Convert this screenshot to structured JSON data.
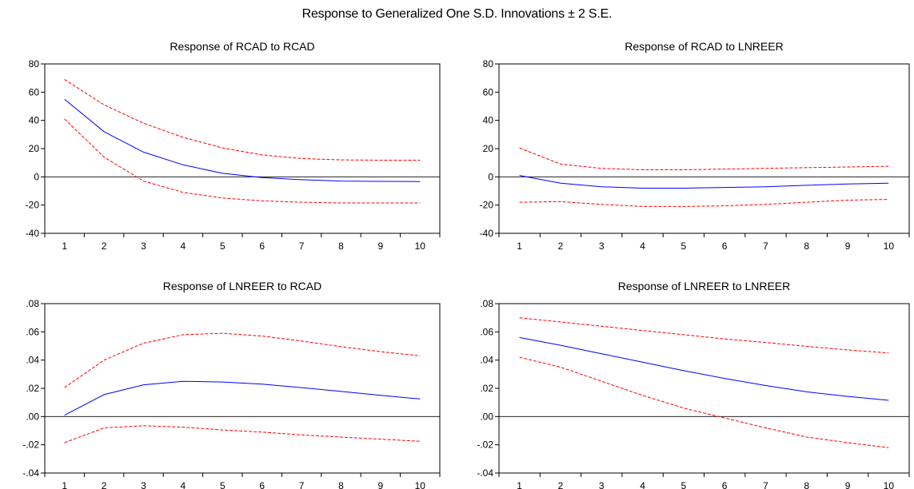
{
  "title": "Response to Generalized One S.D. Innovations ± 2 S.E.",
  "colors": {
    "response": "#0000ff",
    "band": "#ff0000",
    "zero_line": "#000000",
    "frame": "#000000"
  },
  "chart_data": [
    {
      "type": "line",
      "title": "Response of RCAD to RCAD",
      "x": [
        1,
        2,
        3,
        4,
        5,
        6,
        7,
        8,
        9,
        10
      ],
      "ylim": [
        -40,
        80
      ],
      "yticks": [
        -40,
        -20,
        0,
        20,
        40,
        60,
        80
      ],
      "ytick_labels": [
        "-40",
        "-20",
        "0",
        "20",
        "40",
        "60",
        "80"
      ],
      "series": [
        {
          "role": "response",
          "values": [
            55,
            32,
            17.5,
            8.5,
            2.5,
            -0.5,
            -2,
            -3,
            -3.2,
            -3.3
          ]
        },
        {
          "role": "upper",
          "values": [
            69,
            51,
            38,
            28,
            20.5,
            15.5,
            13,
            12,
            11.8,
            11.8
          ]
        },
        {
          "role": "lower",
          "values": [
            41,
            14,
            -3,
            -11,
            -15,
            -17,
            -18,
            -18.5,
            -18.5,
            -18.5
          ]
        }
      ]
    },
    {
      "type": "line",
      "title": "Response of RCAD to LNREER",
      "x": [
        1,
        2,
        3,
        4,
        5,
        6,
        7,
        8,
        9,
        10
      ],
      "ylim": [
        -40,
        80
      ],
      "yticks": [
        -40,
        -20,
        0,
        20,
        40,
        60,
        80
      ],
      "ytick_labels": [
        "-40",
        "-20",
        "0",
        "20",
        "40",
        "60",
        "80"
      ],
      "series": [
        {
          "role": "response",
          "values": [
            1,
            -4.5,
            -7,
            -8,
            -8,
            -7.5,
            -7,
            -6,
            -5,
            -4.5
          ]
        },
        {
          "role": "upper",
          "values": [
            20.5,
            9,
            6,
            5,
            5,
            5.5,
            6,
            6.5,
            7,
            7.5
          ]
        },
        {
          "role": "lower",
          "values": [
            -18,
            -17.5,
            -19.5,
            -21,
            -21,
            -20.5,
            -19.5,
            -18,
            -16.5,
            -16
          ]
        }
      ]
    },
    {
      "type": "line",
      "title": "Response of LNREER to RCAD",
      "x": [
        1,
        2,
        3,
        4,
        5,
        6,
        7,
        8,
        9,
        10
      ],
      "ylim": [
        -0.04,
        0.08
      ],
      "yticks": [
        -0.04,
        -0.02,
        0,
        0.02,
        0.04,
        0.06,
        0.08
      ],
      "ytick_labels": [
        "-.04",
        "-.02",
        ".00",
        ".02",
        ".04",
        ".06",
        ".08"
      ],
      "series": [
        {
          "role": "response",
          "values": [
            0.001,
            0.0155,
            0.0225,
            0.025,
            0.0245,
            0.023,
            0.0205,
            0.0178,
            0.015,
            0.0125
          ]
        },
        {
          "role": "upper",
          "values": [
            0.0205,
            0.04,
            0.052,
            0.058,
            0.059,
            0.057,
            0.0535,
            0.0495,
            0.046,
            0.043
          ]
        },
        {
          "role": "lower",
          "values": [
            -0.0185,
            -0.008,
            -0.0065,
            -0.0075,
            -0.0095,
            -0.011,
            -0.013,
            -0.0145,
            -0.016,
            -0.0175
          ]
        }
      ]
    },
    {
      "type": "line",
      "title": "Response of LNREER to LNREER",
      "x": [
        1,
        2,
        3,
        4,
        5,
        6,
        7,
        8,
        9,
        10
      ],
      "ylim": [
        -0.04,
        0.08
      ],
      "yticks": [
        -0.04,
        -0.02,
        0,
        0.02,
        0.04,
        0.06,
        0.08
      ],
      "ytick_labels": [
        "-.04",
        "-.02",
        ".00",
        ".02",
        ".04",
        ".06",
        ".08"
      ],
      "series": [
        {
          "role": "response",
          "values": [
            0.056,
            0.0505,
            0.0445,
            0.0385,
            0.0325,
            0.027,
            0.022,
            0.0175,
            0.0143,
            0.0115
          ]
        },
        {
          "role": "upper",
          "values": [
            0.07,
            0.067,
            0.064,
            0.061,
            0.058,
            0.055,
            0.0525,
            0.0497,
            0.0472,
            0.045
          ]
        },
        {
          "role": "lower",
          "values": [
            0.042,
            0.035,
            0.025,
            0.015,
            0.006,
            -0.001,
            -0.008,
            -0.0145,
            -0.0185,
            -0.022
          ]
        }
      ]
    }
  ]
}
